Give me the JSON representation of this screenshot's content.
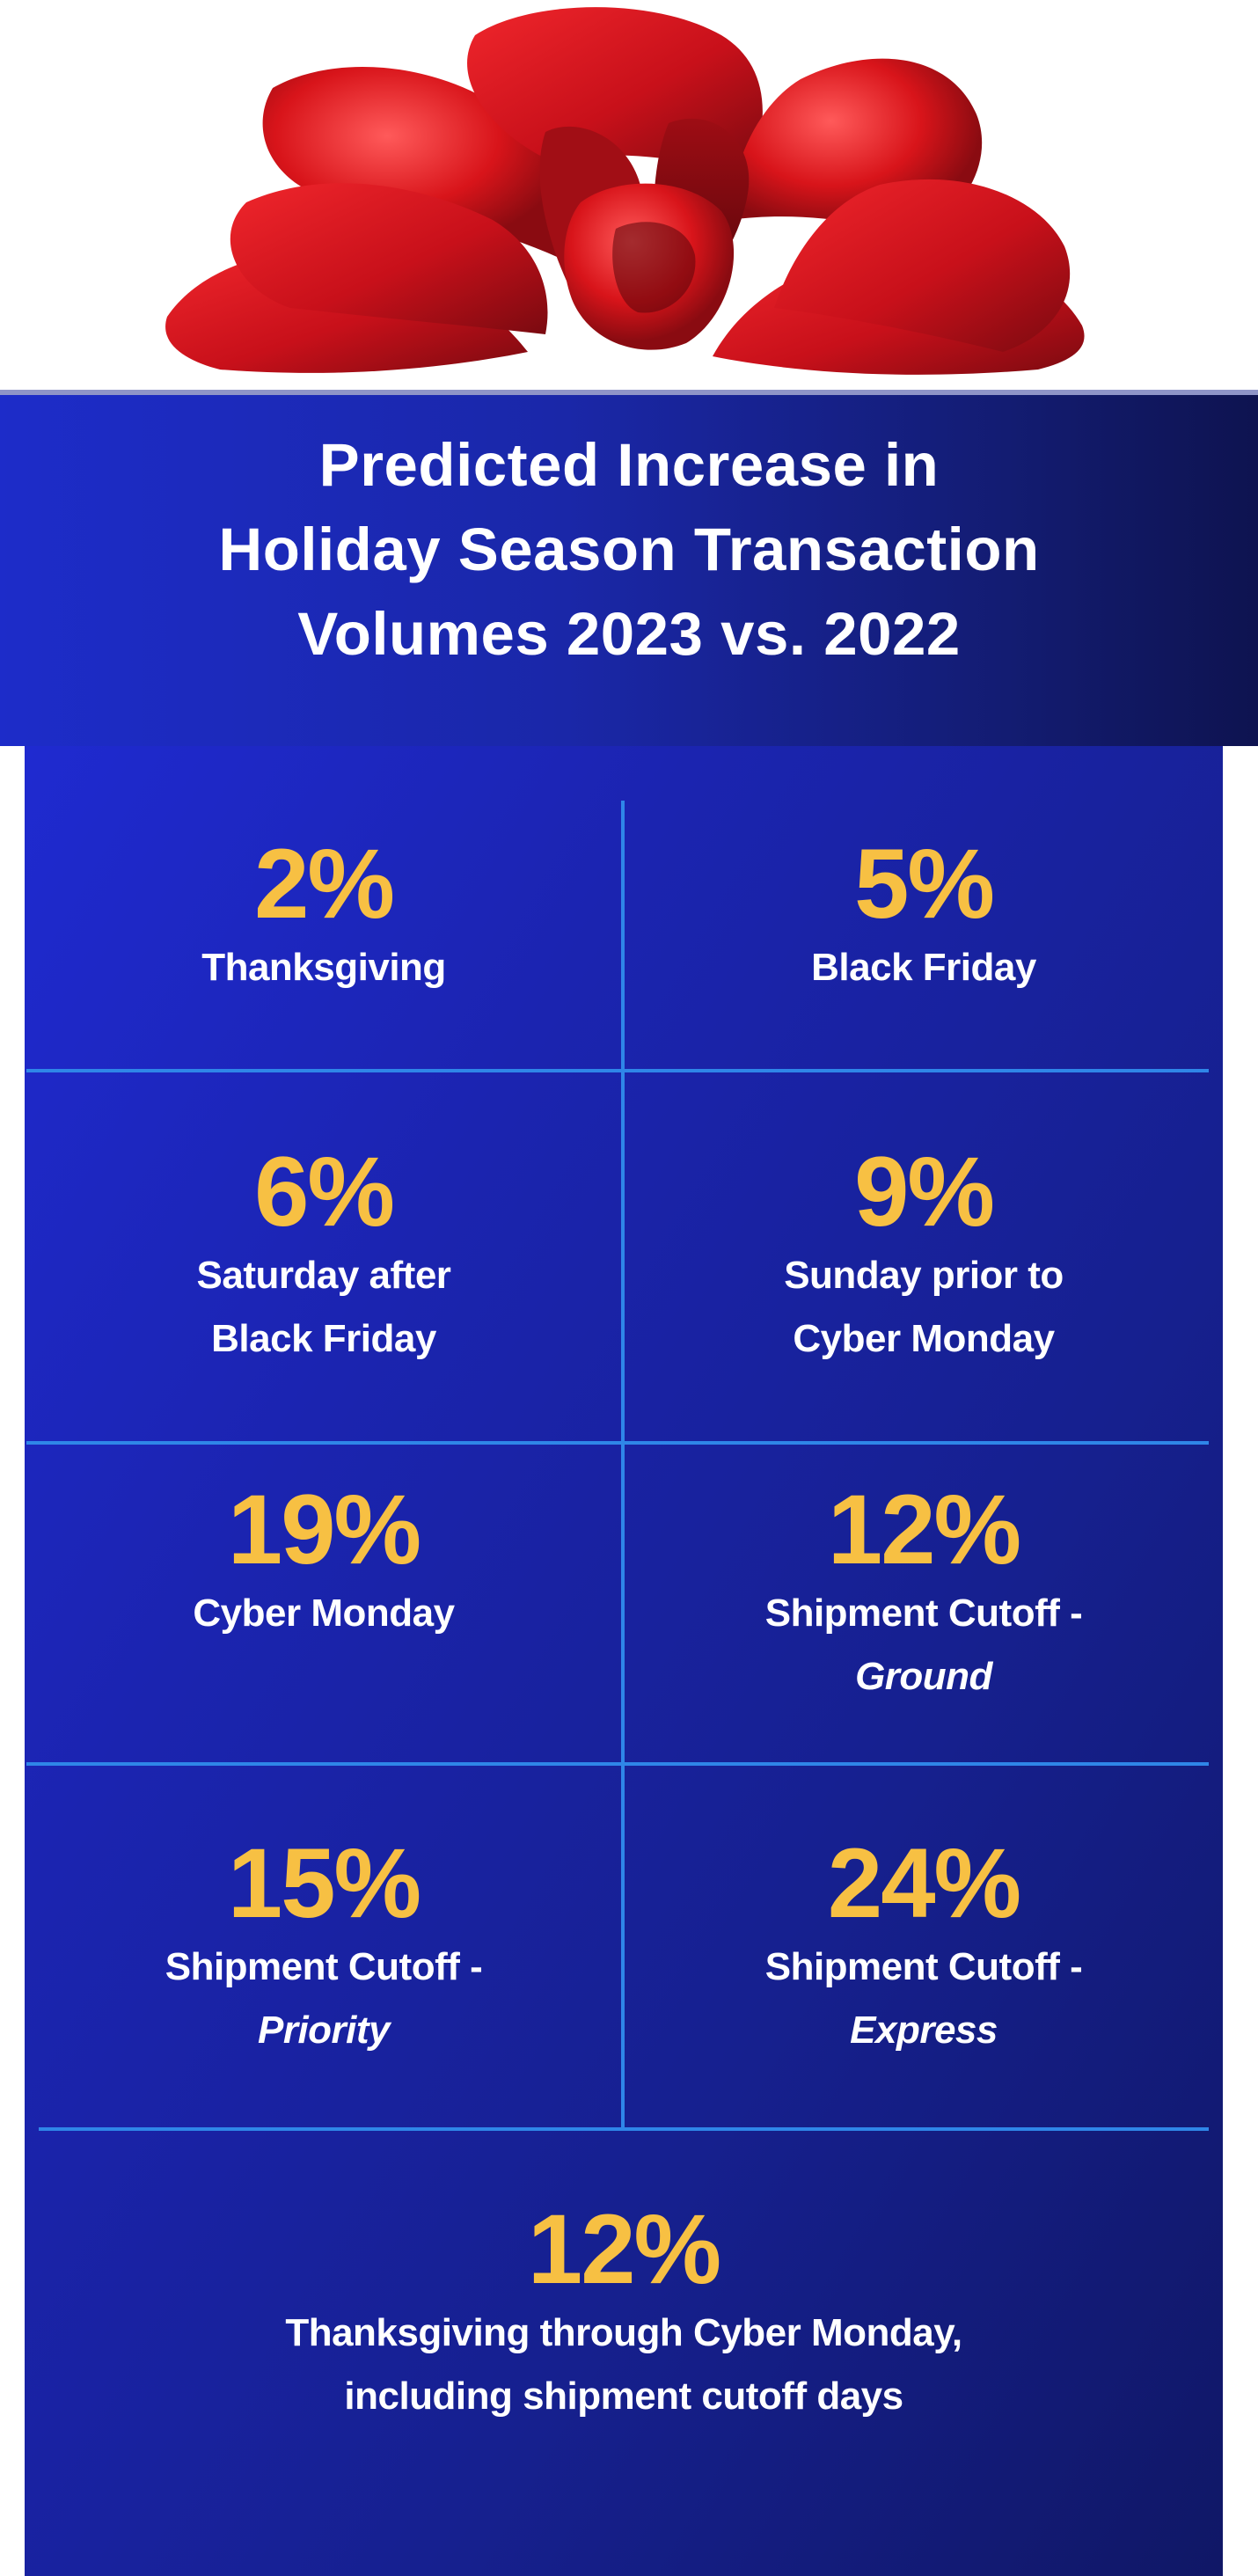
{
  "title": {
    "line1": "Predicted Increase in",
    "line2": "Holiday Season Transaction",
    "line3": "Volumes 2023 vs. 2022"
  },
  "colors": {
    "accent_yellow": "#f7c043",
    "divider_blue": "#2f86e8",
    "bow_red": "#d8141a",
    "panel_blue": "#1b24b0"
  },
  "stats": [
    {
      "value": "2%",
      "label_line1": "Thanksgiving",
      "label_line2": ""
    },
    {
      "value": "5%",
      "label_line1": "Black Friday",
      "label_line2": ""
    },
    {
      "value": "6%",
      "label_line1": "Saturday after",
      "label_line2": "Black Friday"
    },
    {
      "value": "9%",
      "label_line1": "Sunday prior to",
      "label_line2": "Cyber Monday"
    },
    {
      "value": "19%",
      "label_line1": "Cyber Monday",
      "label_line2": ""
    },
    {
      "value": "12%",
      "label_line1": "Shipment Cutoff -",
      "label_line2": "Ground"
    },
    {
      "value": "15%",
      "label_line1": "Shipment Cutoff -",
      "label_line2": "Priority"
    },
    {
      "value": "24%",
      "label_line1": "Shipment Cutoff -",
      "label_line2": "Express"
    }
  ],
  "total": {
    "value": "12%",
    "label_line1": "Thanksgiving through Cyber Monday,",
    "label_line2": "including shipment cutoff days"
  },
  "icons": [
    "gift-bow-icon"
  ]
}
